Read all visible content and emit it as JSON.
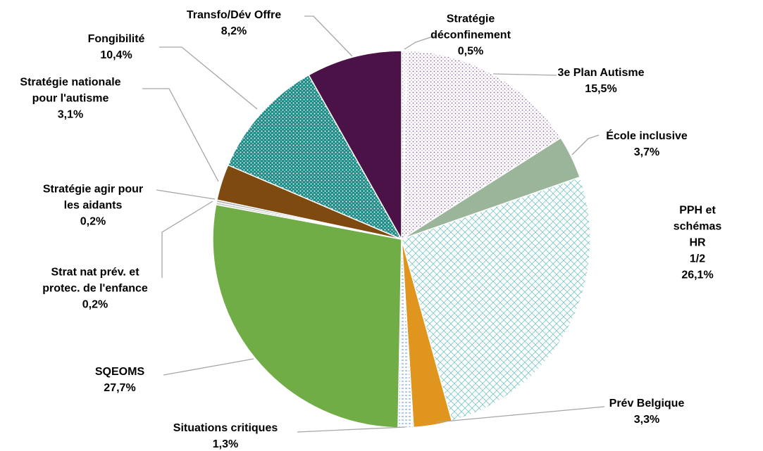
{
  "chart_data": {
    "type": "pie",
    "categories": [
      "Stratégie\ndéconfinement",
      "3e Plan Autisme",
      "École inclusive",
      "PPH et schémas HR\n1/2",
      "Prév Belgique",
      "Situations critiques",
      "SQEOMS",
      "Strat nat prév. et\nprotec. de l'enfance",
      "Stratégie agir pour\nles aidants",
      "Stratégie nationale\npour l'autisme",
      "Fongibilité",
      "Transfo/Dév Offre"
    ],
    "values": [
      0.5,
      15.5,
      3.7,
      26.1,
      3.3,
      1.3,
      27.7,
      0.2,
      0.2,
      3.1,
      10.4,
      8.2
    ],
    "value_labels": [
      "0,5%",
      "15,5%",
      "3,7%",
      "26,1%",
      "3,3%",
      "1,3%",
      "27,7%",
      "0,2%",
      "0,2%",
      "3,1%",
      "10,4%",
      "8,2%"
    ],
    "colors": [
      "#b99bc9",
      "#8e5ea3",
      "#9bb59a",
      "#7fc7c9",
      "#e0951e",
      "#7aa6d6",
      "#70ad47",
      "#c9c9c9",
      "#b0b0b0",
      "#7f4a10",
      "#1a8a86",
      "#4b1248"
    ],
    "patterns": [
      "dots",
      "dots",
      "solid",
      "cross",
      "solid",
      "dashes",
      "solid",
      "solid",
      "solid",
      "solid",
      "dense-dots",
      "solid"
    ]
  }
}
